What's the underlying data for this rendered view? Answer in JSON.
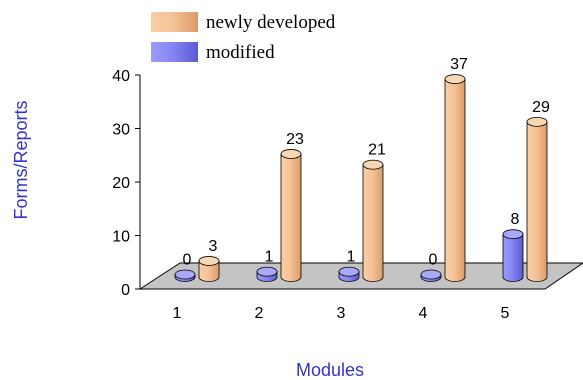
{
  "chart_data": {
    "type": "bar",
    "variant": "3d-cylinder",
    "title": "",
    "xlabel": "Modules",
    "ylabel": "Forms/Reports",
    "categories": [
      "1",
      "2",
      "3",
      "4",
      "5"
    ],
    "ylim": [
      0,
      40
    ],
    "yticks": [
      0,
      10,
      20,
      30,
      40
    ],
    "series": [
      {
        "name": "modified",
        "values": [
          0,
          1,
          1,
          0,
          8
        ],
        "color": "#7b7bf0"
      },
      {
        "name": "newly developed",
        "values": [
          3,
          23,
          21,
          37,
          29
        ],
        "color": "#f2b98a"
      }
    ],
    "legend_placement": "top-center",
    "floor_color": "#c4c4c4",
    "grid": false
  }
}
